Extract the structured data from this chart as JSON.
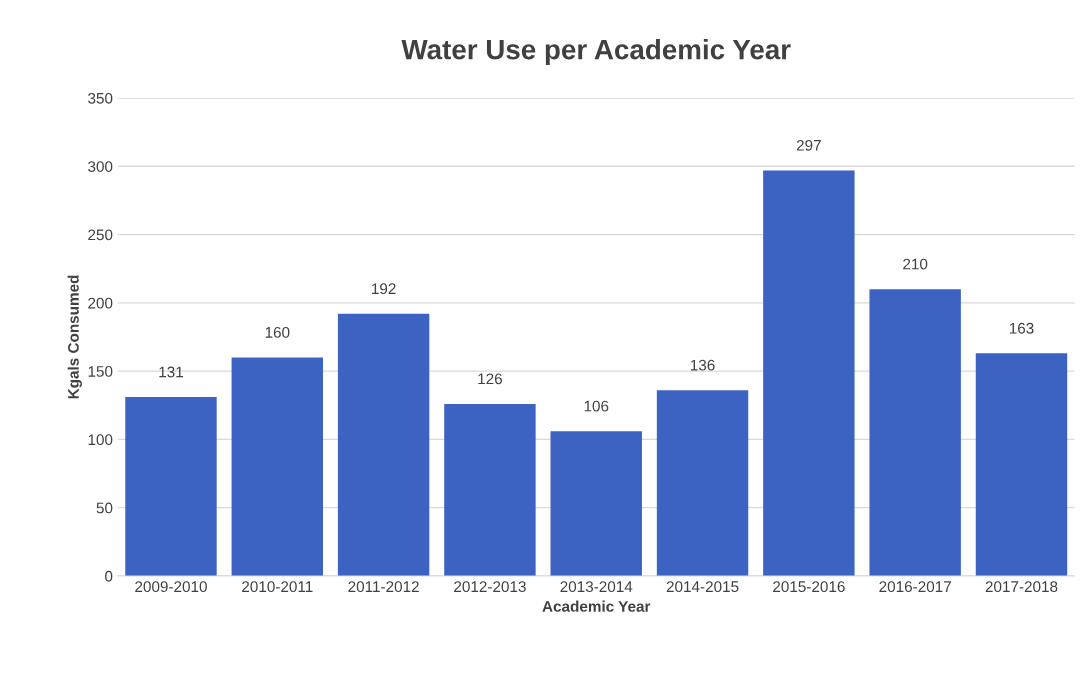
{
  "chart_data": {
    "type": "bar",
    "title": "Water Use per Academic Year",
    "xlabel": "Academic Year",
    "ylabel": "Kgals Consumed",
    "categories": [
      "2009-2010",
      "2010-2011",
      "2011-2012",
      "2012-2013",
      "2013-2014",
      "2014-2015",
      "2015-2016",
      "2016-2017",
      "2017-2018"
    ],
    "values": [
      131,
      160,
      192,
      126,
      106,
      136,
      297,
      210,
      163
    ],
    "color": "#3d63c2",
    "ylim": [
      0,
      350
    ],
    "yticks": [
      0,
      50,
      100,
      150,
      200,
      250,
      300,
      350
    ],
    "grid": "y",
    "data_labels": true
  }
}
